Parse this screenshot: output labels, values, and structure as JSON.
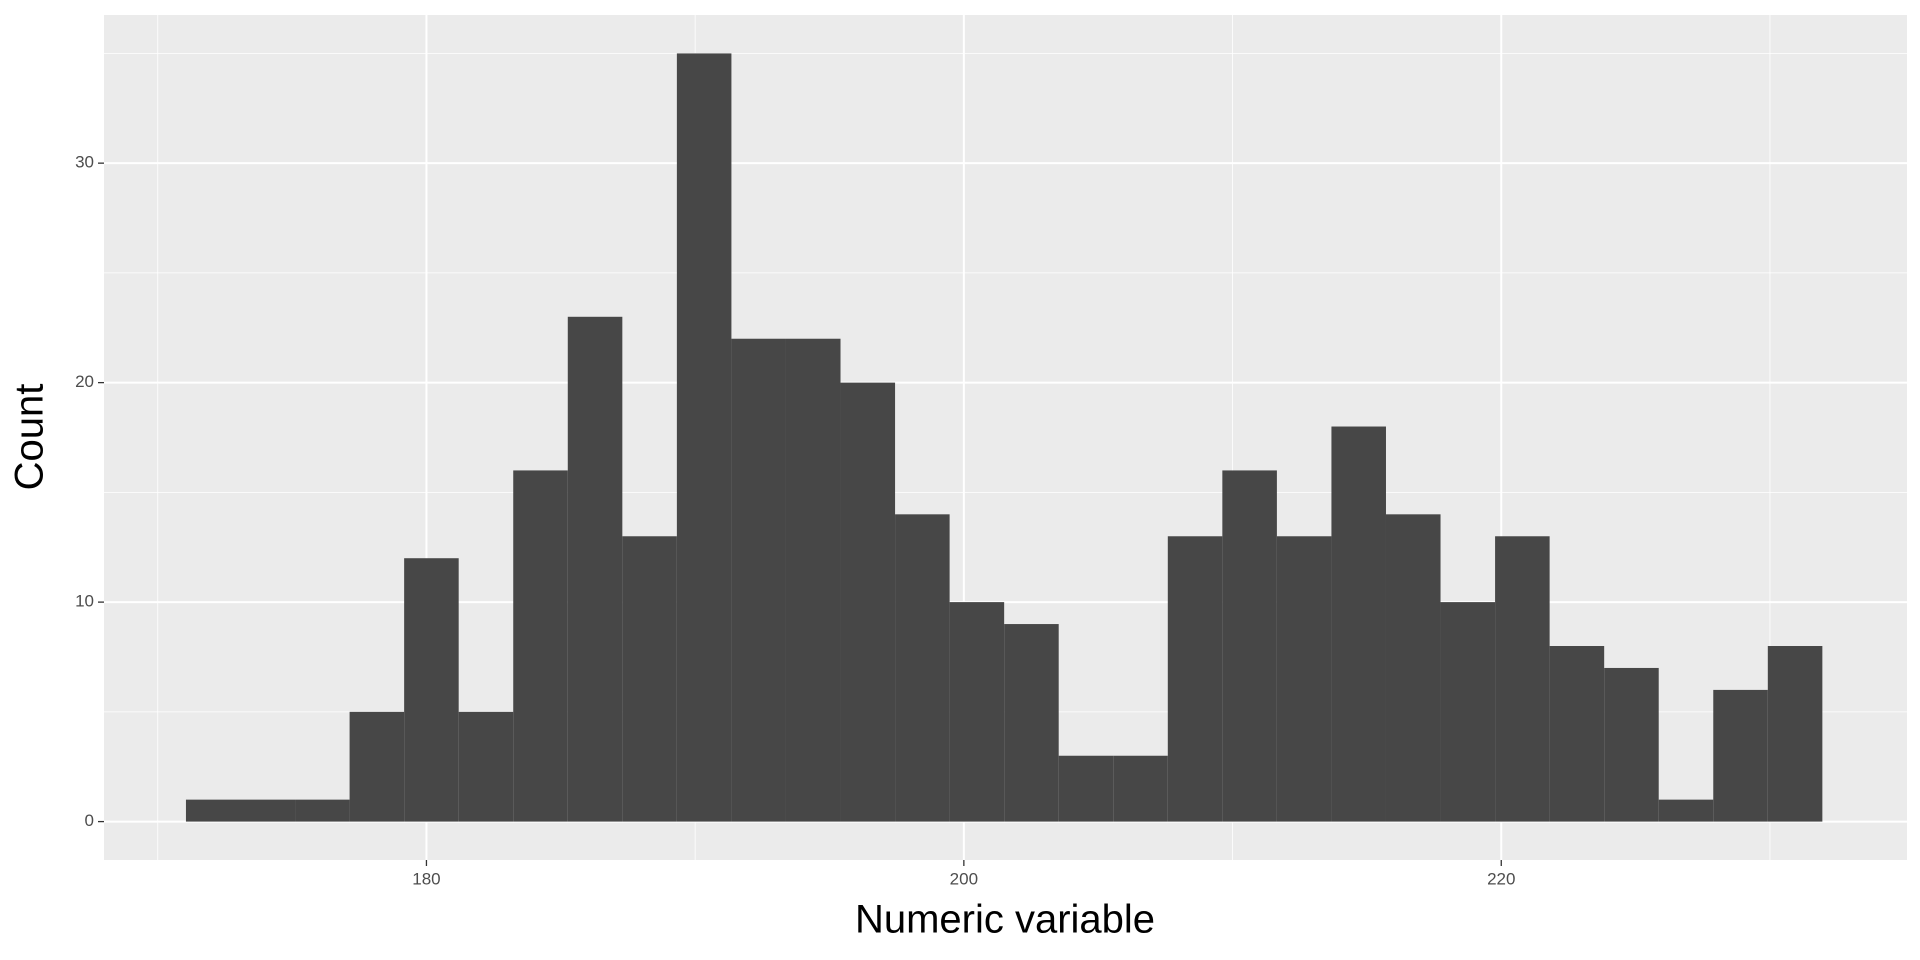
{
  "chart_data": {
    "type": "histogram",
    "x_label": "Numeric variable",
    "y_label": "Count",
    "bins": [
      171.05,
      173.08,
      175.11,
      177.14,
      179.17,
      181.2,
      183.23,
      185.26,
      187.29,
      189.32,
      191.35,
      193.38,
      195.41,
      197.44,
      199.47,
      201.5,
      203.53,
      205.56,
      207.59,
      209.62,
      211.65,
      213.68,
      215.71,
      217.74,
      219.77,
      221.8,
      223.83,
      225.86,
      227.89,
      229.92,
      231.95
    ],
    "values": [
      1,
      1,
      1,
      5,
      12,
      5,
      16,
      23,
      13,
      35,
      22,
      22,
      20,
      14,
      10,
      9,
      3,
      3,
      13,
      16,
      13,
      18,
      14,
      10,
      13,
      8,
      7,
      1,
      6,
      8
    ],
    "color": "#474747",
    "xlim": [
      168.0,
      235.1
    ],
    "xticks": [
      180,
      200,
      220
    ],
    "x_minor_ticks": [
      170,
      190,
      210,
      230
    ],
    "ylim": [
      -1.75,
      36.75
    ],
    "yticks": [
      0,
      10,
      20,
      30
    ],
    "y_minor_ticks": [
      5,
      15,
      25,
      35
    ],
    "grid": true
  }
}
